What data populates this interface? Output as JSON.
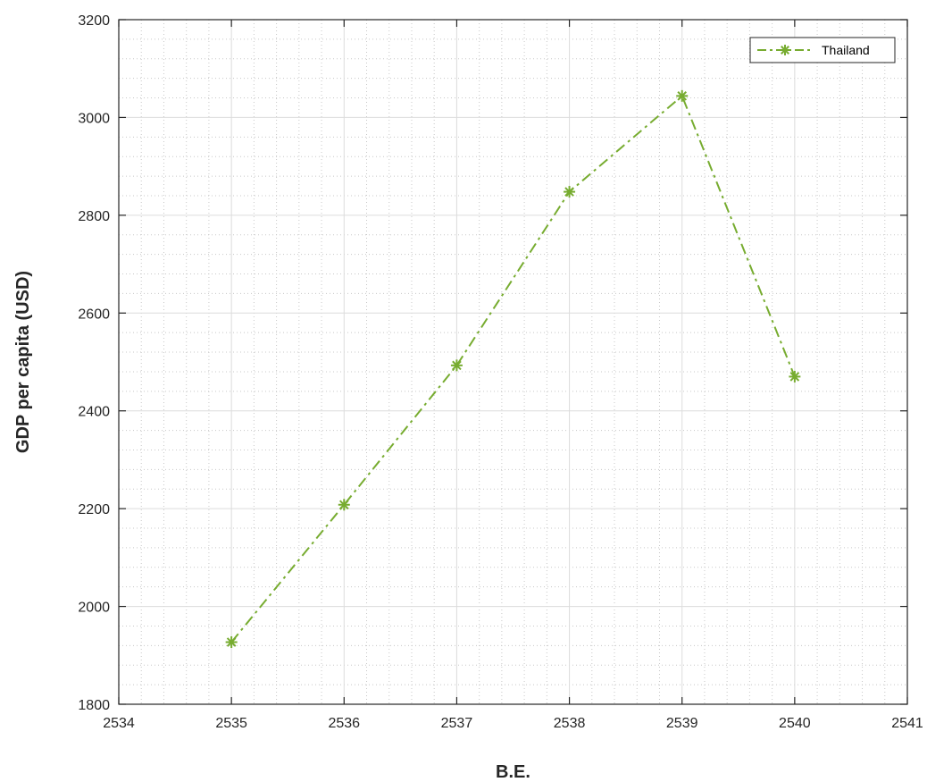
{
  "chart_data": {
    "type": "line",
    "title": "",
    "xlabel": "B.E.",
    "ylabel": "GDP per capita (USD)",
    "xlim": [
      2534,
      2541
    ],
    "ylim": [
      1800,
      3200
    ],
    "x_ticks": [
      2534,
      2535,
      2536,
      2537,
      2538,
      2539,
      2540,
      2541
    ],
    "y_ticks": [
      1800,
      2000,
      2200,
      2400,
      2600,
      2800,
      3000,
      3200
    ],
    "grid": true,
    "minor_grid": true,
    "legend_position": "top-right",
    "series": [
      {
        "name": "Thailand",
        "color": "#77ac30",
        "line_style": "dash-dot",
        "marker": "asterisk",
        "x": [
          2535,
          2536,
          2537,
          2538,
          2539,
          2540
        ],
        "y": [
          1927,
          2208,
          2493,
          2848,
          3044,
          2470
        ]
      }
    ]
  }
}
